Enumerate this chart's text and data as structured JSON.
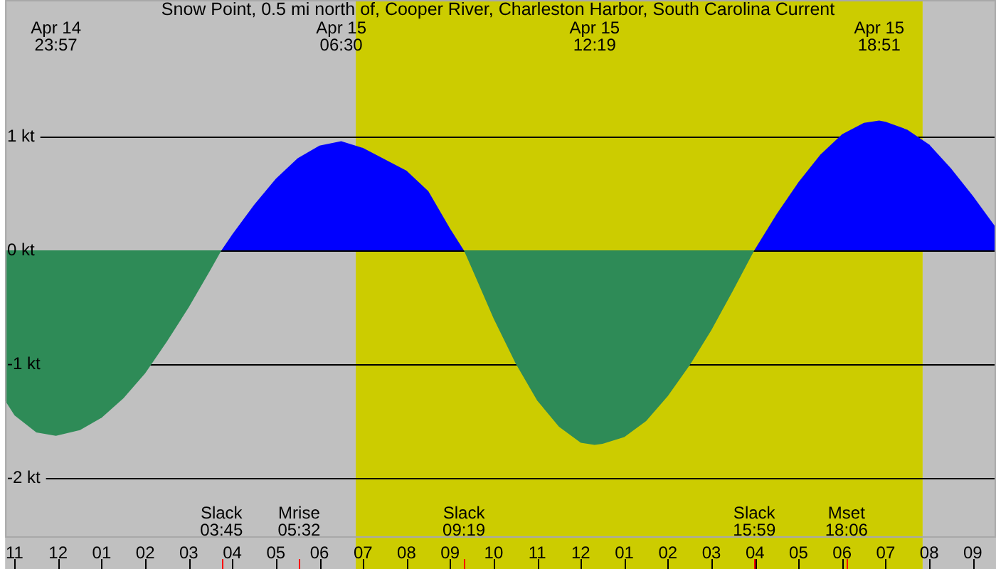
{
  "chart_data": {
    "type": "area",
    "title": "Snow Point, 0.5 mi north of, Cooper River, Charleston Harbor, South Carolina Current",
    "x": [
      "--04-14T22:47",
      "--04-14T23:00",
      "--04-14T23:30",
      "--04-14T23:57",
      "--04-15T00:30",
      "--04-15T01:00",
      "--04-15T01:30",
      "--04-15T02:00",
      "--04-15T02:30",
      "--04-15T03:00",
      "--04-15T03:30",
      "--04-15T03:45",
      "--04-15T04:00",
      "--04-15T04:30",
      "--04-15T05:00",
      "--04-15T05:30",
      "--04-15T06:00",
      "--04-15T06:30",
      "--04-15T07:00",
      "--04-15T07:30",
      "--04-15T08:00",
      "--04-15T08:30",
      "--04-15T09:00",
      "--04-15T09:19",
      "--04-15T09:30",
      "--04-15T10:00",
      "--04-15T10:30",
      "--04-15T11:00",
      "--04-15T11:30",
      "--04-15T12:00",
      "--04-15T12:19",
      "--04-15T12:30",
      "--04-15T13:00",
      "--04-15T13:30",
      "--04-15T14:00",
      "--04-15T14:30",
      "--04-15T15:00",
      "--04-15T15:30",
      "--04-15T15:59",
      "--04-15T16:30",
      "--04-15T17:00",
      "--04-15T17:30",
      "--04-15T18:00",
      "--04-15T18:30",
      "--04-15T18:51",
      "--04-15T19:00",
      "--04-15T19:30",
      "--04-15T20:00",
      "--04-15T20:30",
      "--04-15T21:00",
      "--04-15T21:32"
    ],
    "series": [
      {
        "color": "#0000ff",
        "values": [
          null,
          null,
          null,
          null,
          null,
          null,
          null,
          null,
          null,
          null,
          null,
          0,
          0.14,
          0.4,
          0.63,
          0.81,
          0.92,
          0.96,
          0.9,
          0.8,
          0.7,
          0.52,
          0.19,
          0,
          null,
          null,
          null,
          null,
          null,
          null,
          null,
          null,
          null,
          null,
          null,
          null,
          null,
          null,
          0,
          0.32,
          0.6,
          0.84,
          1.02,
          1.12,
          1.14,
          1.13,
          1.06,
          0.93,
          0.72,
          0.48,
          0.2
        ]
      },
      {
        "color": "#2e8b57",
        "values": [
          -1.32,
          -1.45,
          -1.6,
          -1.63,
          -1.58,
          -1.47,
          -1.3,
          -1.08,
          -0.8,
          -0.5,
          -0.17,
          0,
          null,
          null,
          null,
          null,
          null,
          null,
          null,
          null,
          null,
          null,
          null,
          0,
          -0.16,
          -0.6,
          -0.99,
          -1.32,
          -1.55,
          -1.69,
          -1.71,
          -1.7,
          -1.64,
          -1.5,
          -1.28,
          -1.01,
          -0.7,
          -0.35,
          0,
          null,
          null,
          null,
          null,
          null,
          null,
          null,
          null,
          null,
          null,
          null,
          null
        ]
      }
    ],
    "xlim": [
      "--04-14T22:47",
      "--04-15T21:32"
    ],
    "xticks": [
      {
        "value": "--04-14T23:00",
        "label": "11"
      },
      {
        "value": "--04-15T00:00",
        "label": "12"
      },
      {
        "value": "--04-15T01:00",
        "label": "01"
      },
      {
        "value": "--04-15T02:00",
        "label": "02"
      },
      {
        "value": "--04-15T03:00",
        "label": "03"
      },
      {
        "value": "--04-15T04:00",
        "label": "04"
      },
      {
        "value": "--04-15T05:00",
        "label": "05"
      },
      {
        "value": "--04-15T06:00",
        "label": "06"
      },
      {
        "value": "--04-15T07:00",
        "label": "07"
      },
      {
        "value": "--04-15T08:00",
        "label": "08"
      },
      {
        "value": "--04-15T09:00",
        "label": "09"
      },
      {
        "value": "--04-15T10:00",
        "label": "10"
      },
      {
        "value": "--04-15T11:00",
        "label": "11"
      },
      {
        "value": "--04-15T12:00",
        "label": "12"
      },
      {
        "value": "--04-15T13:00",
        "label": "01"
      },
      {
        "value": "--04-15T14:00",
        "label": "02"
      },
      {
        "value": "--04-15T15:00",
        "label": "03"
      },
      {
        "value": "--04-15T16:00",
        "label": "04"
      },
      {
        "value": "--04-15T17:00",
        "label": "05"
      },
      {
        "value": "--04-15T18:00",
        "label": "06"
      },
      {
        "value": "--04-15T19:00",
        "label": "07"
      },
      {
        "value": "--04-15T20:00",
        "label": "08"
      },
      {
        "value": "--04-15T21:00",
        "label": "09"
      }
    ],
    "ylim": [
      -2.525,
      2.2
    ],
    "yticks": [
      {
        "value": 1,
        "label": "1 kt"
      },
      {
        "value": 0,
        "label": "0 kt"
      },
      {
        "value": -1,
        "label": "-1 kt"
      },
      {
        "value": -2,
        "label": "-2 kt"
      }
    ],
    "grid": "y",
    "legend": false,
    "bands": [
      {
        "axis": "x",
        "from": "--04-14T22:47",
        "to": "--04-15T06:50",
        "color": "#c0c0c0"
      },
      {
        "axis": "x",
        "from": "--04-15T06:50",
        "to": "--04-15T19:51",
        "color": "#cccc00"
      },
      {
        "axis": "x",
        "from": "--04-15T19:51",
        "to": "--04-15T21:32",
        "color": "#c0c0c0"
      }
    ],
    "ref_lines": [
      {
        "axis": "x",
        "value": "--04-15T03:45",
        "label": "Slack\n03:45",
        "color": "#ff0000"
      },
      {
        "axis": "x",
        "value": "--04-15T05:32",
        "label": "Mrise\n05:32",
        "color": "#ff0000"
      },
      {
        "axis": "x",
        "value": "--04-15T09:19",
        "label": "Slack\n09:19",
        "color": "#ff0000"
      },
      {
        "axis": "x",
        "value": "--04-15T15:59",
        "label": "Slack\n15:59",
        "color": "#ff0000"
      },
      {
        "axis": "x",
        "value": "--04-15T18:06",
        "label": "Mset\n18:06",
        "color": "#ff0000"
      }
    ],
    "annotations": [
      "Apr 14\n23:57",
      "Apr 15\n06:30",
      "Apr 15\n12:19",
      "Apr 15\n18:51"
    ]
  }
}
